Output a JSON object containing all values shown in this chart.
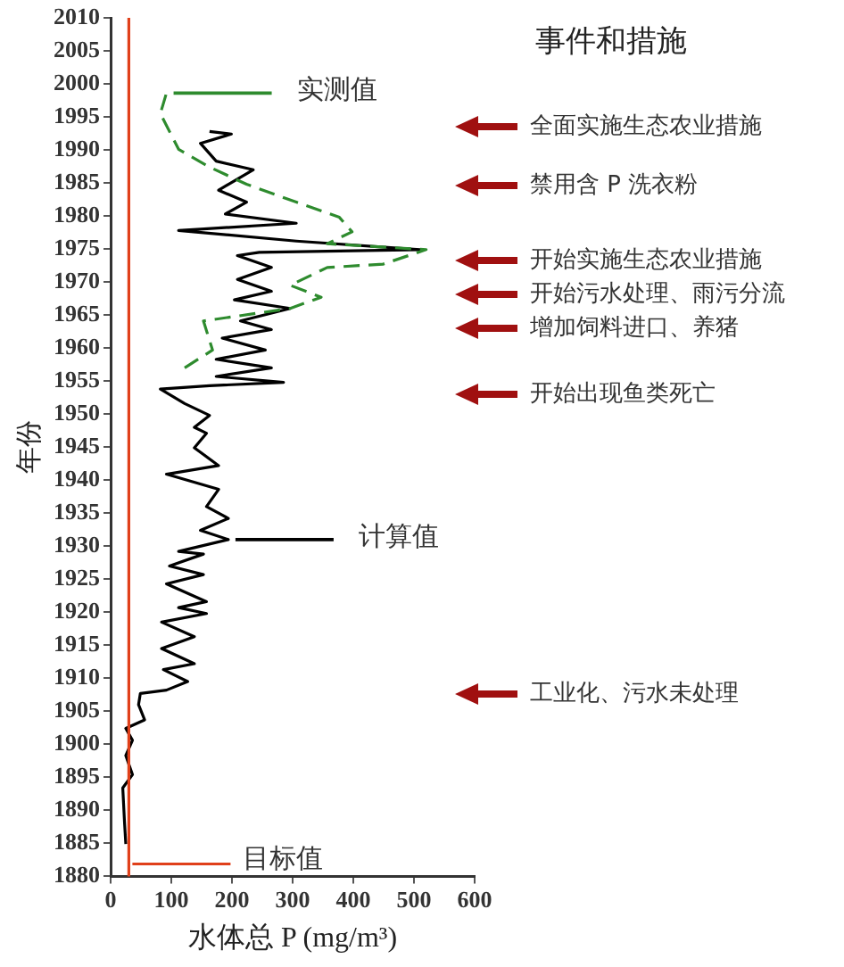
{
  "chart_data": {
    "type": "line",
    "xlabel": "水体总 P (mg/m³)",
    "ylabel": "年份",
    "xlim": [
      0,
      600
    ],
    "xticks": [
      0,
      100,
      200,
      300,
      400,
      500,
      600
    ],
    "ylim": [
      1880,
      2010
    ],
    "yticks": [
      1880,
      1885,
      1890,
      1895,
      1900,
      1905,
      1910,
      1915,
      1920,
      1925,
      1930,
      1935,
      1940,
      1945,
      1950,
      1955,
      1960,
      1965,
      1970,
      1975,
      1980,
      1985,
      1990,
      1995,
      2000,
      2005,
      2010
    ],
    "grid": false,
    "series": [
      {
        "name": "实测值",
        "color": "#2e8b2e",
        "line_style": "dashed",
        "x": [
          122,
          168,
          153,
          296,
          347,
          296,
          357,
          449,
          520,
          357,
          398,
          377,
          306,
          224,
          163,
          112,
          82,
          92
        ],
        "values": [
          1957,
          1959.7,
          1964.1,
          1966,
          1967.7,
          1969.5,
          1972.2,
          1972.7,
          1974.9,
          1975.8,
          1977.6,
          1979.8,
          1982.1,
          1984.8,
          1987.4,
          1990.1,
          1995.5,
          1998.6
        ]
      },
      {
        "name": "计算值",
        "color": "#000000",
        "line_style": "solid",
        "x": [
          25,
          23,
          20,
          36,
          25,
          36,
          25,
          56,
          46,
          49,
          92,
          127,
          87,
          138,
          84,
          138,
          84,
          158,
          112,
          158,
          92,
          153,
          97,
          153,
          112,
          194,
          148,
          194,
          158,
          178,
          92,
          178,
          138,
          158,
          138,
          163,
          122,
          82,
          163,
          285,
          174,
          265,
          174,
          255,
          184,
          265,
          214,
          296,
          204,
          265,
          209,
          265,
          209,
          245,
          510,
          306,
          112,
          306,
          189,
          224,
          178,
          235,
          174,
          148,
          199,
          163
        ],
        "values": [
          1884.9,
          1888,
          1893.4,
          1895.4,
          1898.3,
          1900.6,
          1902.4,
          1903.7,
          1906,
          1907.7,
          1908.2,
          1909.5,
          1911.3,
          1912.2,
          1914.5,
          1916.3,
          1918.5,
          1919.8,
          1920.7,
          1921.6,
          1924.3,
          1925.7,
          1927,
          1928.8,
          1929.2,
          1931,
          1932.4,
          1934.2,
          1936,
          1938.6,
          1940.9,
          1942.2,
          1944.9,
          1947.1,
          1948,
          1949.8,
          1951.6,
          1953.8,
          1954.3,
          1954.8,
          1955.7,
          1957,
          1958.3,
          1959.7,
          1961.5,
          1962.8,
          1964.1,
          1966,
          1967.3,
          1968.6,
          1970.4,
          1972.2,
          1974,
          1974.5,
          1974.9,
          1976.2,
          1977.8,
          1978.9,
          1980.3,
          1982.1,
          1983.9,
          1987,
          1988.3,
          1991,
          1992.4,
          1992.8
        ]
      }
    ],
    "ref_lines": [
      {
        "axis": "x",
        "value": 30,
        "label": "目标值",
        "color": "#e0401a"
      }
    ],
    "legend": "top",
    "annotations": [
      "事件和措施",
      "全面实施生态农业措施",
      "禁用含 P 洗衣粉",
      "开始实施生态农业措施",
      "开始污水处理、雨污分流",
      "增加饲料进口、养猪",
      "开始出现鱼类死亡",
      "工业化、污水未处理"
    ]
  }
}
